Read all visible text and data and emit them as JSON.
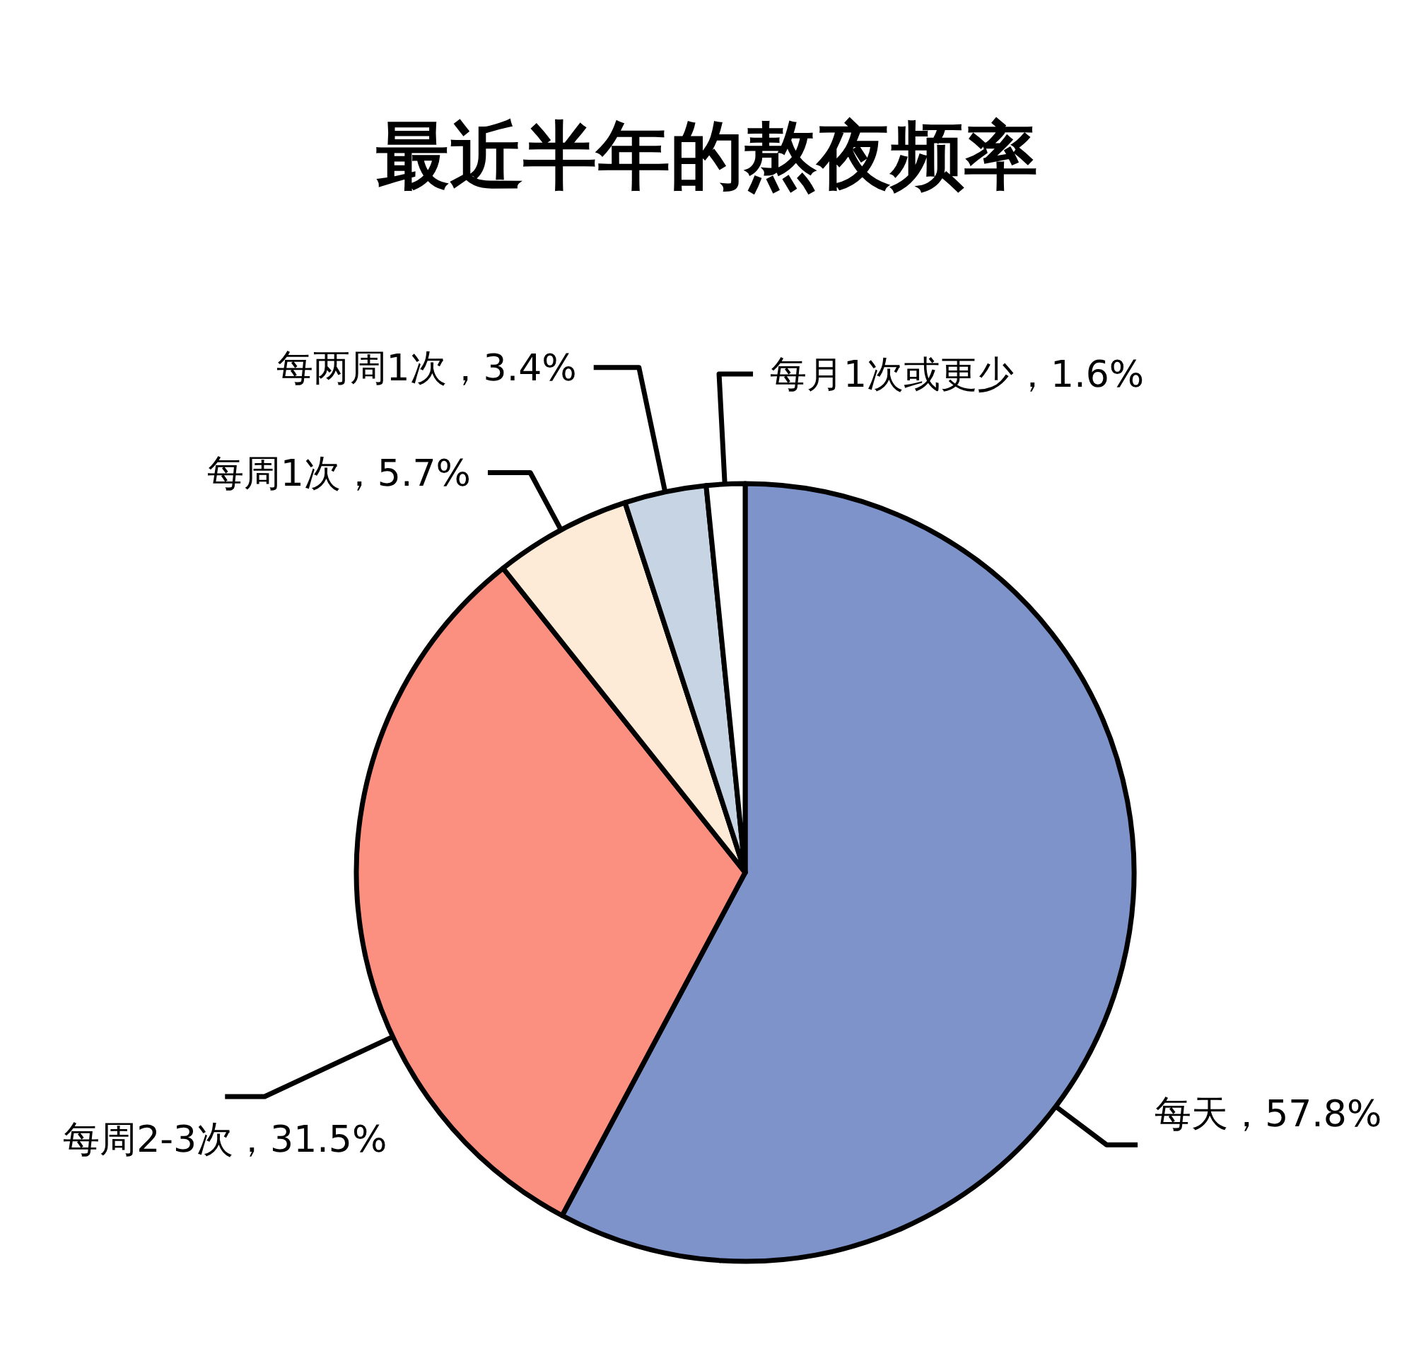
{
  "chart_data": {
    "type": "pie",
    "title": "最近半年的熬夜频率",
    "categories": [
      "每天",
      "每周2-3次",
      "每周1次",
      "每两周1次",
      "每月1次或更少"
    ],
    "values": [
      57.8,
      31.5,
      5.7,
      3.4,
      1.6
    ],
    "colors": [
      "#7f93cb",
      "#fc9080",
      "#fdebd7",
      "#c6d4e3",
      "#ffffff"
    ],
    "value_labels": [
      "57.8%",
      "31.5%",
      "5.7%",
      "3.4%",
      "1.6%"
    ]
  }
}
